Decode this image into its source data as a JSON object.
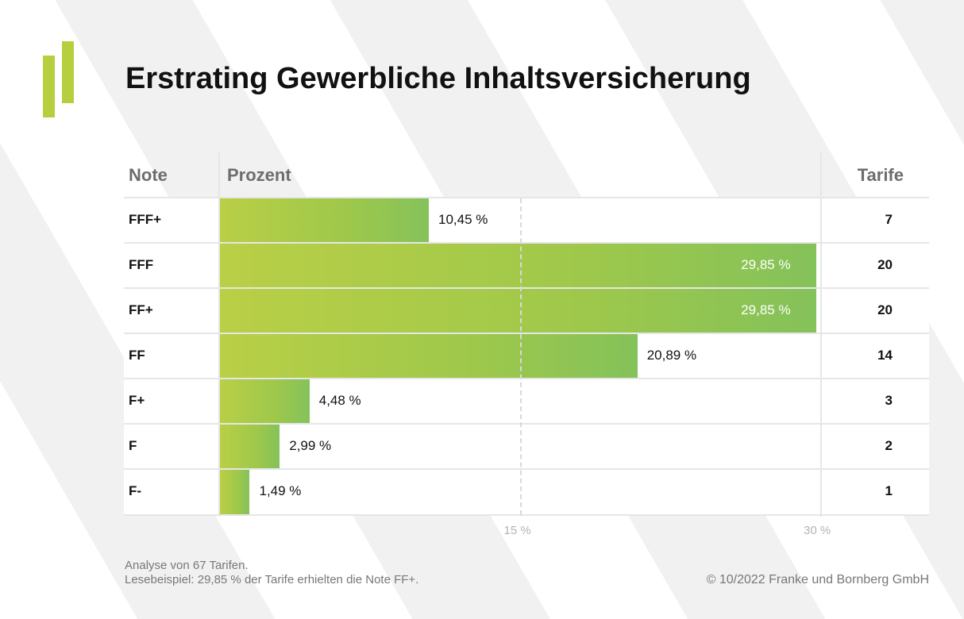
{
  "title": "Erstrating Gewerbliche Inhaltsversicherung",
  "colors": {
    "accent": "#b5cf3e",
    "bar_start": "#b9cf46",
    "bar_end": "#84c25a"
  },
  "headers": {
    "note": "Note",
    "prozent": "Prozent",
    "tarife": "Tarife"
  },
  "chart_data": {
    "type": "bar",
    "orientation": "horizontal",
    "categories": [
      "FFF+",
      "FFF",
      "FF+",
      "FF",
      "F+",
      "F",
      "F-"
    ],
    "values": [
      10.45,
      29.85,
      29.85,
      20.89,
      4.48,
      2.99,
      1.49
    ],
    "value_labels": [
      "10,45 %",
      "29,85 %",
      "29,85 %",
      "20,89 %",
      "4,48 %",
      "2,99 %",
      "1,49 %"
    ],
    "counts": [
      7,
      20,
      20,
      14,
      3,
      2,
      1
    ],
    "xlim": [
      0,
      30
    ],
    "xticks": [
      15,
      30
    ],
    "xtick_labels": [
      "15 %",
      "30 %"
    ]
  },
  "footer": {
    "line1": "Analyse von 67 Tarifen.",
    "line2": "Lesebeispiel: 29,85 % der Tarife erhielten die Note FF+.",
    "copyright": "© 10/2022 Franke und Bornberg GmbH"
  }
}
